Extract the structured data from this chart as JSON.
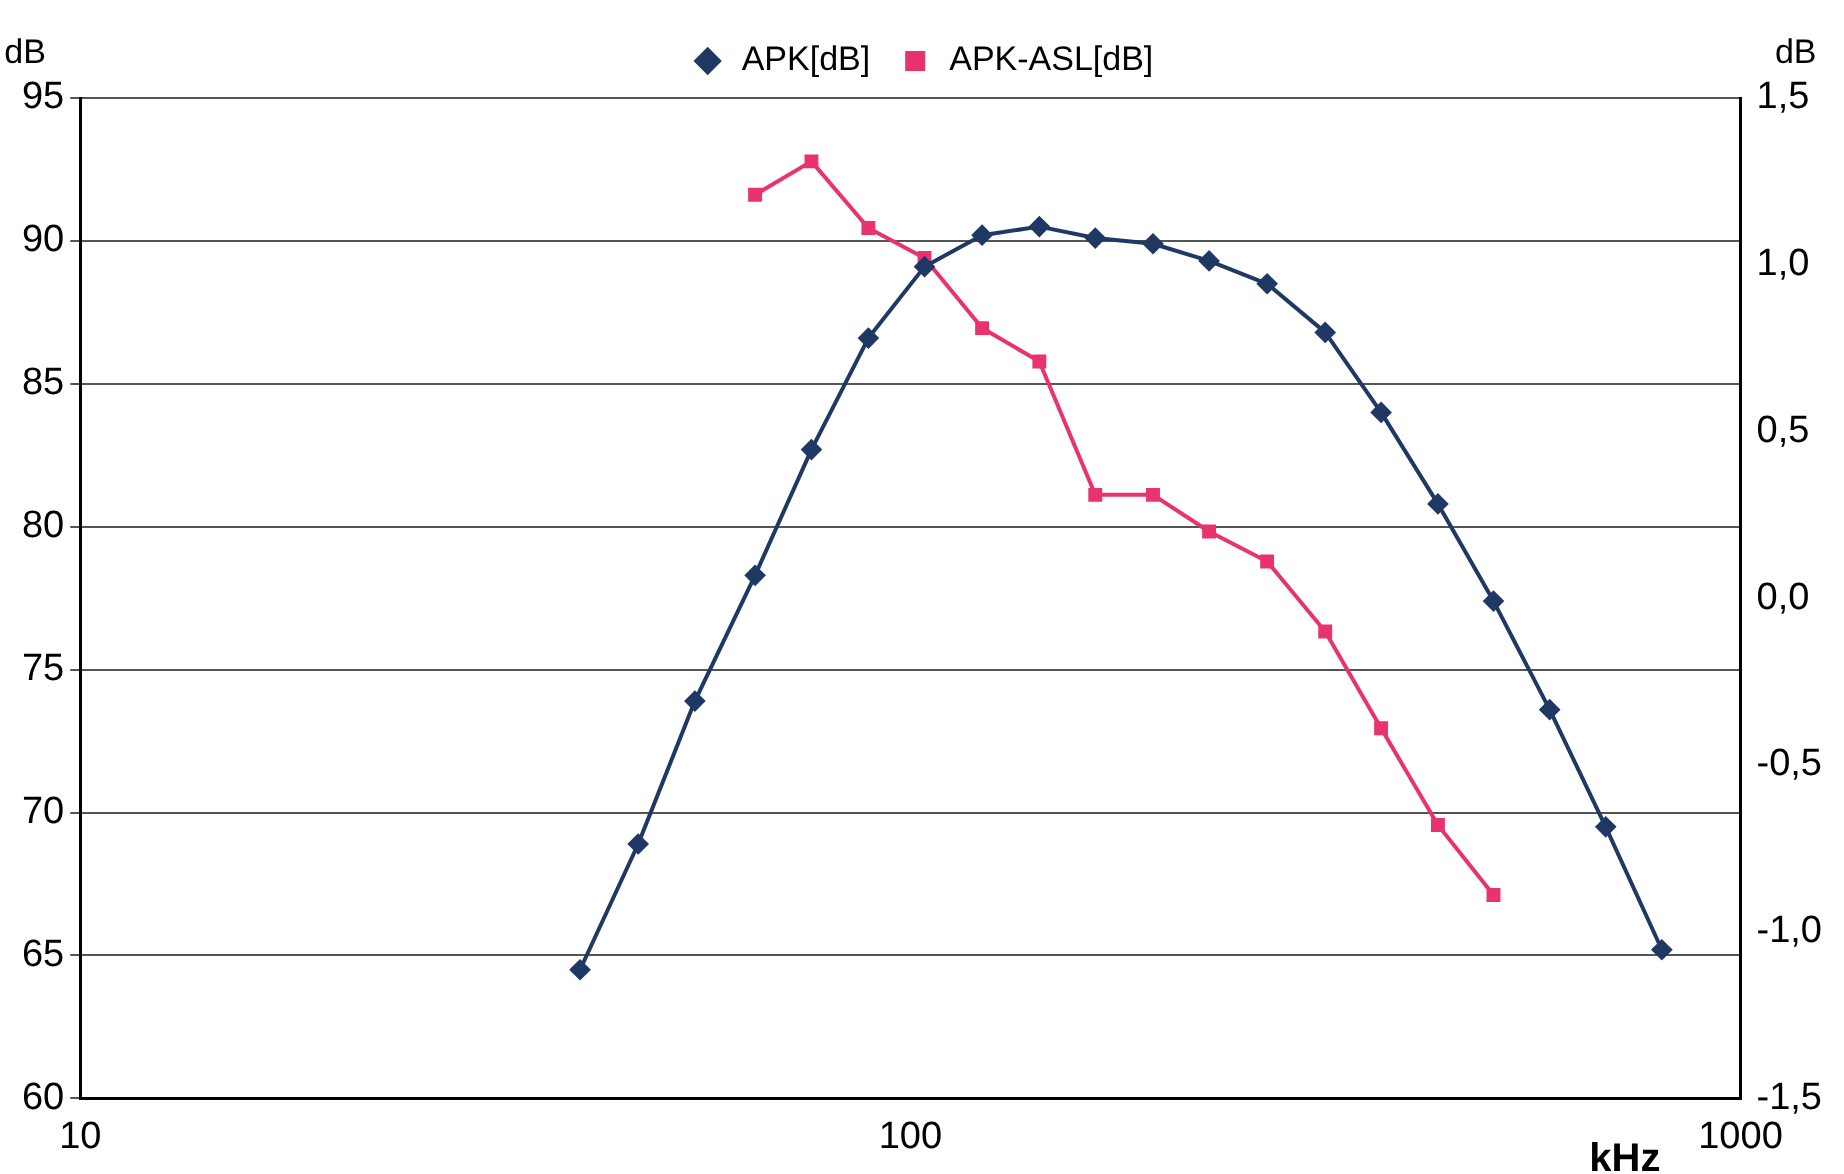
{
  "chart_data": {
    "type": "line",
    "xlabel": "kHz",
    "ylabel": "dB",
    "y2label": "dB",
    "log": "x",
    "xlim": [
      10,
      1000
    ],
    "xticks": [
      10,
      100,
      1000
    ],
    "ylim": [
      60,
      95
    ],
    "yticks": [
      60,
      65,
      70,
      75,
      80,
      85,
      90,
      95
    ],
    "y2lim": [
      -1.5,
      1.5
    ],
    "y2ticks": [
      {
        "value": -1.5,
        "label": "-1,5"
      },
      {
        "value": -1,
        "label": "-1,0"
      },
      {
        "value": -0.5,
        "label": "-0,5"
      },
      {
        "value": 0,
        "label": "0,0"
      },
      {
        "value": 0.5,
        "label": "0,5"
      },
      {
        "value": 1,
        "label": "1,0"
      },
      {
        "value": 1.5,
        "label": "1,5"
      }
    ],
    "grid": "y",
    "legend": "top",
    "line_style": "solid",
    "series": [
      {
        "name": "APK[dB]",
        "color": "#1f3864",
        "marker": "diamond",
        "x": [
          40,
          47,
          55,
          65,
          76,
          89,
          104,
          122,
          143,
          167,
          196,
          229,
          269,
          316,
          369,
          432,
          504,
          589,
          688,
          804
        ],
        "values": [
          64.5,
          68.9,
          73.9,
          78.3,
          82.7,
          86.6,
          89.1,
          90.2,
          90.5,
          90.1,
          89.9,
          89.3,
          88.5,
          86.8,
          84.0,
          80.8,
          77.4,
          73.6,
          69.5,
          65.2
        ]
      },
      {
        "name": "APK-ASL[dB]",
        "color": "#e8336e",
        "marker": "square",
        "axis": "y2",
        "x": [
          65,
          76,
          89,
          104,
          122,
          143,
          167,
          196,
          229,
          269,
          316,
          369,
          432,
          504
        ],
        "values": [
          1.21,
          1.31,
          1.11,
          1.02,
          0.81,
          0.71,
          0.31,
          0.31,
          0.2,
          0.11,
          -0.1,
          -0.39,
          -0.68,
          -0.89
        ]
      }
    ]
  }
}
